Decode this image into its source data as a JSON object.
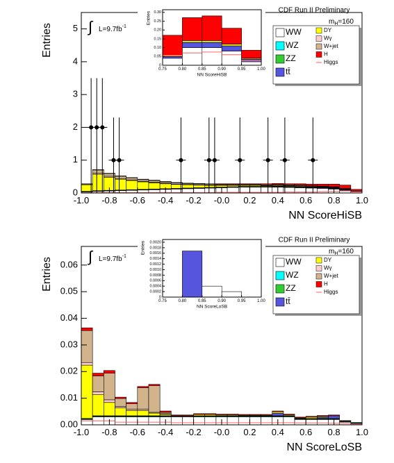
{
  "chart_data": [
    {
      "type": "histogram",
      "title": "CDF Run II Preliminary",
      "x_label": "NN ScoreHiSB",
      "y_label": "Entries",
      "lumi": {
        "integral": "∫",
        "text": "L=9.7fb",
        "sup": "-1"
      },
      "mass": {
        "text": "m",
        "sub": "H",
        "value": "=160"
      },
      "bins": [
        -1,
        -0.92,
        -0.84,
        -0.76,
        -0.68,
        -0.6,
        -0.52,
        -0.44,
        -0.36,
        -0.28,
        -0.2,
        -0.12,
        -0.04,
        0.04,
        0.12,
        0.2,
        0.28,
        0.36,
        0.44,
        0.52,
        0.6,
        0.68,
        0.76,
        0.84,
        0.92,
        1
      ],
      "xlim": [
        -1,
        1
      ],
      "ylim": [
        0,
        5.5
      ],
      "xticks": [
        {
          "value": -1,
          "label": "-1.0"
        },
        {
          "value": -0.8,
          "label": "-0.8"
        },
        {
          "value": -0.6,
          "label": "-0.6"
        },
        {
          "value": -0.4,
          "label": "-0.4"
        },
        {
          "value": -0.2,
          "label": "-0.2"
        },
        {
          "value": 0,
          "label": "-0.0"
        },
        0.2,
        0.4,
        0.6,
        0.8,
        {
          "value": 1,
          "label": "1.0"
        }
      ],
      "yticks": [
        0,
        1,
        2,
        3,
        4,
        5
      ],
      "series": [
        {
          "name": "WW",
          "color": "#ffffff",
          "values": [
            0.03,
            0.05,
            0.06,
            0.07,
            0.08,
            0.09,
            0.1,
            0.11,
            0.12,
            0.13,
            0.14,
            0.15,
            0.16,
            0.17,
            0.18,
            0.18,
            0.18,
            0.18,
            0.17,
            0.16,
            0.15,
            0.14,
            0.12,
            0.08,
            0.03
          ]
        },
        {
          "name": "WZ",
          "color": "#00ffff",
          "values": [
            0.01,
            0.01,
            0.01,
            0.01,
            0.01,
            0.01,
            0.01,
            0.01,
            0.01,
            0.01,
            0.01,
            0.01,
            0.01,
            0.01,
            0.01,
            0.01,
            0.01,
            0.01,
            0.01,
            0.01,
            0.01,
            0.01,
            0.01,
            0.01,
            0.01
          ]
        },
        {
          "name": "ZZ",
          "color": "#33cc33",
          "values": [
            0.01,
            0.01,
            0.01,
            0.01,
            0.01,
            0.01,
            0.01,
            0.01,
            0.01,
            0.01,
            0.01,
            0.01,
            0.01,
            0.01,
            0.01,
            0.01,
            0.01,
            0.01,
            0.01,
            0.01,
            0.01,
            0.01,
            0.01,
            0.01,
            0.01
          ]
        },
        {
          "name": "tt̄",
          "color": "#5555dd",
          "values": [
            0,
            0,
            0,
            0,
            0,
            0,
            0,
            0,
            0,
            0,
            0,
            0,
            0,
            0,
            0,
            0,
            0,
            0.01,
            0.01,
            0.01,
            0.01,
            0.02,
            0.02,
            0.02,
            0.01
          ]
        },
        {
          "name": "DY",
          "color": "#ffff00",
          "values": [
            0.2,
            0.5,
            0.4,
            0.33,
            0.28,
            0.23,
            0.19,
            0.15,
            0.12,
            0.1,
            0.08,
            0.06,
            0.05,
            0.04,
            0.03,
            0.03,
            0.02,
            0.02,
            0.02,
            0.02,
            0.01,
            0.01,
            0.01,
            0.01,
            0
          ]
        },
        {
          "name": "Wγ",
          "color": "#ffcccc",
          "values": [
            0.01,
            0.03,
            0.03,
            0.02,
            0.02,
            0.02,
            0.02,
            0.02,
            0.01,
            0.01,
            0.01,
            0.01,
            0.01,
            0.01,
            0.01,
            0.01,
            0.01,
            0.01,
            0.01,
            0.01,
            0.01,
            0.01,
            0.01,
            0,
            0
          ]
        },
        {
          "name": "W+jet",
          "color": "#d2b48c",
          "values": [
            0.02,
            0.1,
            0.08,
            0.07,
            0.06,
            0.05,
            0.05,
            0.04,
            0.04,
            0.03,
            0.03,
            0.03,
            0.02,
            0.02,
            0.02,
            0.02,
            0.02,
            0.02,
            0.02,
            0.02,
            0.02,
            0.01,
            0.01,
            0.01,
            0
          ]
        },
        {
          "name": "H",
          "color": "#ff0000",
          "values": [
            0,
            0.01,
            0.01,
            0.01,
            0.01,
            0.01,
            0.01,
            0.01,
            0.01,
            0.01,
            0.01,
            0.01,
            0.02,
            0.02,
            0.02,
            0.02,
            0.03,
            0.03,
            0.03,
            0.04,
            0.05,
            0.06,
            0.08,
            0.1,
            0.05
          ]
        },
        {
          "name": "Higgs",
          "color": "#ff7777",
          "style": "line",
          "values": [
            0,
            0.01,
            0.01,
            0.01,
            0.01,
            0.01,
            0.01,
            0.01,
            0.01,
            0.01,
            0.01,
            0.01,
            0.02,
            0.02,
            0.02,
            0.02,
            0.02,
            0.02,
            0.03,
            0.03,
            0.03,
            0.04,
            0.05,
            0.06,
            0.03
          ]
        }
      ],
      "points": {
        "x": [
          -0.93,
          -0.89,
          -0.85,
          -0.77,
          -0.73,
          -0.29,
          -0.09,
          -0.05,
          0.13,
          0.33,
          0.45,
          0.65
        ],
        "values": [
          2,
          2,
          2,
          1,
          1,
          1,
          1,
          1,
          1,
          1,
          1,
          1
        ],
        "err_low": [
          2,
          2,
          2,
          1,
          1,
          1,
          1,
          1,
          1,
          1,
          1,
          1
        ],
        "err_high": [
          1.5,
          1.5,
          1.5,
          1.3,
          1.3,
          1.3,
          1.3,
          1.3,
          1.3,
          1.3,
          1.3,
          1.3
        ]
      }
    },
    {
      "type": "histogram",
      "x_label": "NN ScoreHiSB",
      "y_label": "Entries",
      "bins": [
        0.75,
        0.8,
        0.85,
        0.9,
        0.95,
        1
      ],
      "xlim": [
        0.75,
        1
      ],
      "ylim": [
        0,
        0.315
      ],
      "xticks": [
        0.75,
        {
          "value": 0.8,
          "label": "0.80"
        },
        0.85,
        {
          "value": 0.9,
          "label": "0.90"
        },
        0.95,
        {
          "value": 1,
          "label": "1.00"
        }
      ],
      "yticks": [
        0,
        0.05,
        {
          "value": 0.1,
          "label": "0.10"
        },
        0.15,
        {
          "value": 0.2,
          "label": "0.20"
        },
        0.25,
        {
          "value": 0.3,
          "label": "0.30"
        }
      ],
      "series": [
        {
          "name": "WW",
          "color": "#ffffff",
          "values": [
            0.04,
            0.1,
            0.1,
            0.08,
            0.02
          ]
        },
        {
          "name": "tt̄",
          "color": "#5555dd",
          "values": [
            0.01,
            0.03,
            0.03,
            0.03,
            0.015
          ]
        },
        {
          "name": "DY",
          "color": "#ffff00",
          "values": [
            0.005,
            0.01,
            0.01,
            0.01,
            0.005
          ]
        },
        {
          "name": "H",
          "color": "#ff0000",
          "values": [
            0.115,
            0.13,
            0.14,
            0.09,
            0.045
          ]
        },
        {
          "name": "Higgs",
          "color": "#ff7777",
          "style": "line",
          "values": [
            0.055,
            0.07,
            0.075,
            0.06,
            0.025
          ]
        }
      ]
    },
    {
      "type": "histogram",
      "title": "CDF Run II Preliminary",
      "x_label": "NN ScoreLoSB",
      "y_label": "Entries",
      "lumi": {
        "integral": "∫",
        "text": "L=9.7fb",
        "sup": "-1"
      },
      "mass": {
        "text": "m",
        "sub": "H",
        "value": "=160"
      },
      "bins": [
        -1,
        -0.92,
        -0.84,
        -0.76,
        -0.68,
        -0.6,
        -0.52,
        -0.44,
        -0.36,
        -0.28,
        -0.2,
        -0.12,
        -0.04,
        0.04,
        0.12,
        0.2,
        0.28,
        0.36,
        0.44,
        0.52,
        0.6,
        0.68,
        0.76,
        0.84,
        0.92,
        1
      ],
      "xlim": [
        -1,
        1
      ],
      "ylim": [
        0,
        0.067
      ],
      "xticks": [
        {
          "value": -1,
          "label": "-1.0"
        },
        {
          "value": -0.8,
          "label": "-0.8"
        },
        {
          "value": -0.6,
          "label": "-0.6"
        },
        {
          "value": -0.4,
          "label": "-0.4"
        },
        {
          "value": -0.2,
          "label": "-0.2"
        },
        {
          "value": 0,
          "label": "-0.0"
        },
        0.2,
        0.4,
        0.6,
        0.8,
        {
          "value": 1,
          "label": "1.0"
        }
      ],
      "yticks": [
        {
          "value": 0,
          "label": "0.00"
        },
        0.01,
        0.02,
        0.03,
        0.04,
        0.05,
        0.06
      ],
      "series": [
        {
          "name": "WW",
          "color": "#ffffff",
          "values": [
            0.002,
            0.003,
            0.003,
            0.003,
            0.003,
            0.003,
            0.003,
            0.003,
            0.003,
            0.003,
            0.003,
            0.003,
            0.003,
            0.003,
            0.003,
            0.003,
            0.003,
            0.003,
            0.003,
            0.002,
            0.002,
            0.002,
            0.002,
            0.001,
            0.0005
          ]
        },
        {
          "name": "WZ",
          "color": "#00ffff",
          "values": [
            0.0002,
            0.0002,
            0.0002,
            0.0002,
            0.0002,
            0.0002,
            0.0002,
            0.0002,
            0.0002,
            0.0002,
            0.0002,
            0.0002,
            0.0002,
            0.0002,
            0.0002,
            0.0002,
            0.0002,
            0.0002,
            0.0002,
            0.0002,
            0.0002,
            0.0002,
            0.0002,
            0.0002,
            0.0002
          ]
        },
        {
          "name": "ZZ",
          "color": "#33cc33",
          "values": [
            0.0002,
            0.0002,
            0.0002,
            0.0002,
            0.0002,
            0.0002,
            0.0002,
            0.0002,
            0.0002,
            0.0002,
            0.0002,
            0.0002,
            0.0002,
            0.0002,
            0.0002,
            0.0002,
            0.0002,
            0.0002,
            0.0002,
            0.0002,
            0.0002,
            0.0002,
            0.0002,
            0.0002,
            0.0002
          ]
        },
        {
          "name": "tt̄",
          "color": "#5555dd",
          "values": [
            0,
            0,
            0,
            0,
            0,
            0,
            0,
            0,
            0,
            0,
            0,
            0,
            0,
            0,
            0,
            0,
            0,
            0.001,
            0,
            0,
            0,
            0.0005,
            0.001,
            0,
            0
          ]
        },
        {
          "name": "DY",
          "color": "#ffff00",
          "values": [
            0.02,
            0.008,
            0.005,
            0.003,
            0.002,
            0.002,
            0.001,
            0.0005,
            0,
            0,
            0.0005,
            0.0005,
            0.0003,
            0.0003,
            0.0002,
            0.0002,
            0.0002,
            0.0005,
            0.0003,
            0.0002,
            0.0005,
            0.0003,
            0,
            0,
            0
          ]
        },
        {
          "name": "Wγ",
          "color": "#ffcccc",
          "values": [
            0.001,
            0.001,
            0.001,
            0.0005,
            0.0005,
            0.0005,
            0.0003,
            0.0003,
            0,
            0,
            0,
            0,
            0,
            0,
            0,
            0,
            0,
            0,
            0,
            0,
            0,
            0,
            0,
            0,
            0
          ]
        },
        {
          "name": "W+jet",
          "color": "#d2b48c",
          "values": [
            0.012,
            0.006,
            0.01,
            0.003,
            0.002,
            0.008,
            0.01,
            0.0005,
            0,
            0,
            0,
            0,
            0,
            0,
            0,
            0,
            0,
            0,
            0,
            0,
            0,
            0,
            0,
            0,
            0
          ]
        },
        {
          "name": "H",
          "color": "#ff0000",
          "values": [
            0.001,
            0.001,
            0.001,
            0.0005,
            0.0005,
            0.0005,
            0.0005,
            0.0005,
            0.0003,
            0.0003,
            0.0003,
            0.0003,
            0.0003,
            0.0003,
            0.0003,
            0.0003,
            0.0003,
            0.0003,
            0.0003,
            0.0003,
            0.0003,
            0.0003,
            0.0003,
            0.0002,
            0
          ]
        },
        {
          "name": "Higgs",
          "color": "#ff7777",
          "style": "line",
          "values": [
            0.0015,
            0.0015,
            0.0015,
            0.001,
            0.001,
            0.001,
            0.001,
            0.001,
            0.0008,
            0.0008,
            0.0008,
            0.0008,
            0.0008,
            0.0008,
            0.0008,
            0.0008,
            0.0008,
            0.0008,
            0.0008,
            0.0007,
            0.0007,
            0.0007,
            0.0006,
            0.0005,
            0.0002
          ]
        }
      ]
    },
    {
      "type": "histogram",
      "x_label": "NN ScoreLoSB",
      "y_label": "Entries",
      "bins": [
        0.75,
        0.8,
        0.85,
        0.9,
        0.95,
        1
      ],
      "xlim": [
        0.75,
        1
      ],
      "ylim": [
        0,
        0.0021
      ],
      "xticks": [
        0.75,
        {
          "value": 0.8,
          "label": "0.80"
        },
        0.85,
        {
          "value": 0.9,
          "label": "0.90"
        },
        0.95,
        {
          "value": 1,
          "label": "1.00"
        }
      ],
      "yticks": [
        0,
        0.0002,
        0.0004,
        0.0006,
        0.0008,
        {
          "value": 0.001,
          "label": "0.0010"
        },
        0.0012,
        0.0014,
        0.0016,
        0.0018,
        {
          "value": 0.002,
          "label": "0.0020"
        }
      ],
      "series": [
        {
          "name": "WW",
          "color": "#ffffff",
          "values": [
            0,
            0,
            0.0004,
            0.0002,
            0
          ]
        },
        {
          "name": "tt̄",
          "color": "#5555dd",
          "values": [
            0,
            0.00168,
            0,
            0,
            0
          ]
        }
      ]
    }
  ]
}
